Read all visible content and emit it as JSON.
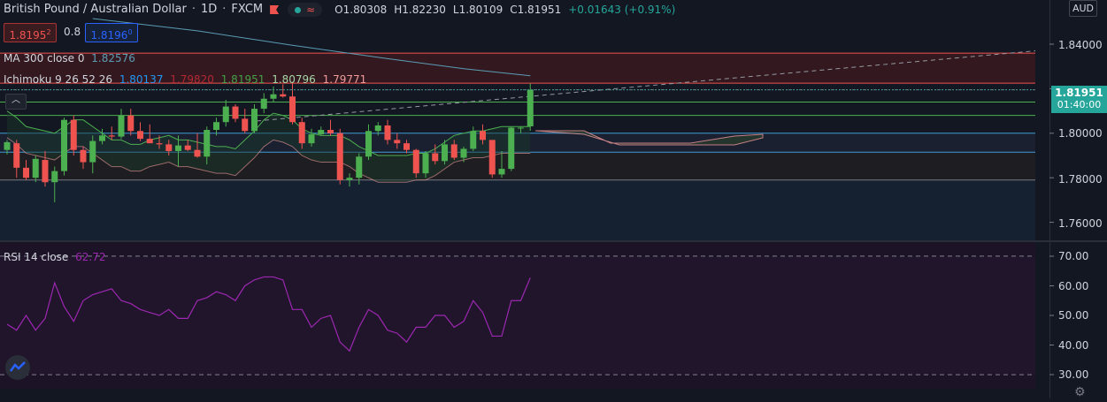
{
  "header": {
    "symbol": "British Pound / Australian Dollar",
    "interval": "1D",
    "exchange": "FXCM",
    "ohlc": {
      "o_label": "O",
      "o": "1.80308",
      "h_label": "H",
      "h": "1.82230",
      "l_label": "L",
      "l": "1.80109",
      "c_label": "C",
      "c": "1.81951",
      "change": "+0.01643 (+0.91%)"
    },
    "sell_price": "1.8195",
    "sell_sup": "2",
    "spread": "0.8",
    "buy_price": "1.8196",
    "buy_sup": "0",
    "currency": "AUD"
  },
  "indicators": {
    "ma": {
      "label": "MA 300 close 0",
      "value": "1.82576"
    },
    "ichimoku": {
      "label": "Ichimoku 9 26 52 26",
      "values": [
        "1.80137",
        "1.79820",
        "1.81951",
        "1.80796",
        "1.79771"
      ]
    },
    "rsi": {
      "label": "RSI 14 close",
      "value": "62.72"
    }
  },
  "price_axis": {
    "labels": [
      "1.84000",
      "1.82000",
      "1.80000",
      "1.78000",
      "1.76000"
    ],
    "current_price": "1.81951",
    "countdown": "01:40:00"
  },
  "rsi_axis": {
    "labels": [
      "70.00",
      "60.00",
      "50.00",
      "40.00",
      "30.00"
    ]
  },
  "colors": {
    "bg": "#131722",
    "up": "#26a69a",
    "up_candle": "#4caf50",
    "down": "#ef5350",
    "ma": "#5b9cb5",
    "rsi": "#9c27b0"
  },
  "icons": {
    "flag": "flag-icon",
    "market_status": "dot-icon",
    "wave": "wave-icon",
    "collapse": "chevron-up-icon",
    "logo": "tradingview-logo-icon",
    "settings": "gear-icon"
  },
  "chart_data": {
    "type": "candlestick",
    "title": "British Pound / Australian Dollar",
    "interval": "1D",
    "ylim": [
      1.75,
      1.85
    ],
    "candles": [
      {
        "o": 1.7925,
        "h": 1.797,
        "l": 1.7905,
        "c": 1.796
      },
      {
        "o": 1.7955,
        "h": 1.797,
        "l": 1.78,
        "c": 1.7845
      },
      {
        "o": 1.7845,
        "h": 1.788,
        "l": 1.779,
        "c": 1.78
      },
      {
        "o": 1.78,
        "h": 1.79,
        "l": 1.778,
        "c": 1.7885
      },
      {
        "o": 1.788,
        "h": 1.792,
        "l": 1.776,
        "c": 1.778
      },
      {
        "o": 1.778,
        "h": 1.785,
        "l": 1.769,
        "c": 1.783
      },
      {
        "o": 1.783,
        "h": 1.807,
        "l": 1.781,
        "c": 1.806
      },
      {
        "o": 1.806,
        "h": 1.808,
        "l": 1.79,
        "c": 1.7925
      },
      {
        "o": 1.7925,
        "h": 1.794,
        "l": 1.784,
        "c": 1.787
      },
      {
        "o": 1.787,
        "h": 1.799,
        "l": 1.782,
        "c": 1.7965
      },
      {
        "o": 1.7965,
        "h": 1.802,
        "l": 1.795,
        "c": 1.799
      },
      {
        "o": 1.799,
        "h": 1.803,
        "l": 1.797,
        "c": 1.7985
      },
      {
        "o": 1.7985,
        "h": 1.811,
        "l": 1.7975,
        "c": 1.808
      },
      {
        "o": 1.808,
        "h": 1.811,
        "l": 1.799,
        "c": 1.801
      },
      {
        "o": 1.801,
        "h": 1.805,
        "l": 1.7965,
        "c": 1.7975
      },
      {
        "o": 1.7975,
        "h": 1.804,
        "l": 1.7955,
        "c": 1.7955
      },
      {
        "o": 1.7955,
        "h": 1.799,
        "l": 1.793,
        "c": 1.795
      },
      {
        "o": 1.795,
        "h": 1.797,
        "l": 1.79,
        "c": 1.792
      },
      {
        "o": 1.792,
        "h": 1.799,
        "l": 1.785,
        "c": 1.7945
      },
      {
        "o": 1.7945,
        "h": 1.797,
        "l": 1.792,
        "c": 1.7925
      },
      {
        "o": 1.7925,
        "h": 1.8,
        "l": 1.789,
        "c": 1.7895
      },
      {
        "o": 1.7895,
        "h": 1.803,
        "l": 1.786,
        "c": 1.8015
      },
      {
        "o": 1.8015,
        "h": 1.807,
        "l": 1.799,
        "c": 1.805
      },
      {
        "o": 1.805,
        "h": 1.815,
        "l": 1.803,
        "c": 1.812
      },
      {
        "o": 1.812,
        "h": 1.813,
        "l": 1.805,
        "c": 1.8065
      },
      {
        "o": 1.8065,
        "h": 1.811,
        "l": 1.8,
        "c": 1.801
      },
      {
        "o": 1.801,
        "h": 1.813,
        "l": 1.8,
        "c": 1.811
      },
      {
        "o": 1.811,
        "h": 1.818,
        "l": 1.809,
        "c": 1.8155
      },
      {
        "o": 1.8155,
        "h": 1.821,
        "l": 1.814,
        "c": 1.8175
      },
      {
        "o": 1.8175,
        "h": 1.822,
        "l": 1.816,
        "c": 1.8165
      },
      {
        "o": 1.8165,
        "h": 1.823,
        "l": 1.804,
        "c": 1.805
      },
      {
        "o": 1.805,
        "h": 1.807,
        "l": 1.793,
        "c": 1.7955
      },
      {
        "o": 1.7955,
        "h": 1.802,
        "l": 1.794,
        "c": 1.7995
      },
      {
        "o": 1.7995,
        "h": 1.803,
        "l": 1.799,
        "c": 1.8015
      },
      {
        "o": 1.8015,
        "h": 1.806,
        "l": 1.799,
        "c": 1.8
      },
      {
        "o": 1.8,
        "h": 1.802,
        "l": 1.777,
        "c": 1.779
      },
      {
        "o": 1.779,
        "h": 1.782,
        "l": 1.776,
        "c": 1.78
      },
      {
        "o": 1.78,
        "h": 1.791,
        "l": 1.777,
        "c": 1.7895
      },
      {
        "o": 1.7895,
        "h": 1.804,
        "l": 1.788,
        "c": 1.801
      },
      {
        "o": 1.801,
        "h": 1.805,
        "l": 1.799,
        "c": 1.8035
      },
      {
        "o": 1.8035,
        "h": 1.806,
        "l": 1.795,
        "c": 1.797
      },
      {
        "o": 1.797,
        "h": 1.8,
        "l": 1.793,
        "c": 1.7955
      },
      {
        "o": 1.7955,
        "h": 1.797,
        "l": 1.791,
        "c": 1.7925
      },
      {
        "o": 1.7925,
        "h": 1.793,
        "l": 1.78,
        "c": 1.782
      },
      {
        "o": 1.782,
        "h": 1.792,
        "l": 1.78,
        "c": 1.791
      },
      {
        "o": 1.791,
        "h": 1.795,
        "l": 1.786,
        "c": 1.7875
      },
      {
        "o": 1.7875,
        "h": 1.797,
        "l": 1.786,
        "c": 1.795
      },
      {
        "o": 1.795,
        "h": 1.797,
        "l": 1.788,
        "c": 1.789
      },
      {
        "o": 1.789,
        "h": 1.794,
        "l": 1.787,
        "c": 1.793
      },
      {
        "o": 1.793,
        "h": 1.803,
        "l": 1.792,
        "c": 1.801
      },
      {
        "o": 1.801,
        "h": 1.804,
        "l": 1.795,
        "c": 1.797
      },
      {
        "o": 1.797,
        "h": 1.796,
        "l": 1.78,
        "c": 1.7815
      },
      {
        "o": 1.7815,
        "h": 1.792,
        "l": 1.78,
        "c": 1.784
      },
      {
        "o": 1.784,
        "h": 1.803,
        "l": 1.783,
        "c": 1.8025
      },
      {
        "o": 1.8025,
        "h": 1.803,
        "l": 1.8,
        "c": 1.8025
      },
      {
        "o": 1.8031,
        "h": 1.8223,
        "l": 1.8011,
        "c": 1.8195
      }
    ],
    "ma300": [
      {
        "i": 9,
        "v": 1.8515
      },
      {
        "i": 20,
        "v": 1.846
      },
      {
        "i": 30,
        "v": 1.8395
      },
      {
        "i": 40,
        "v": 1.8335
      },
      {
        "i": 48,
        "v": 1.829
      },
      {
        "i": 55,
        "v": 1.8258
      }
    ],
    "horizontal_levels": [
      1.836,
      1.8225,
      1.8195,
      1.814,
      1.808,
      1.8,
      1.7915,
      1.779
    ],
    "rsi": [
      47,
      45,
      50,
      45,
      49,
      61,
      53,
      48,
      55,
      57,
      58,
      59,
      55,
      54,
      52,
      51,
      50,
      52,
      49,
      49,
      55,
      56,
      58,
      57,
      55,
      60,
      62,
      63,
      63,
      62,
      52,
      52,
      46,
      49,
      50,
      41,
      38,
      46,
      52,
      50,
      45,
      44,
      41,
      46,
      46,
      50,
      50,
      46,
      48,
      55,
      51,
      43,
      43,
      55,
      55,
      62.72
    ],
    "rsi_ylim": [
      28,
      76
    ],
    "rsi_levels": [
      70,
      30
    ]
  }
}
